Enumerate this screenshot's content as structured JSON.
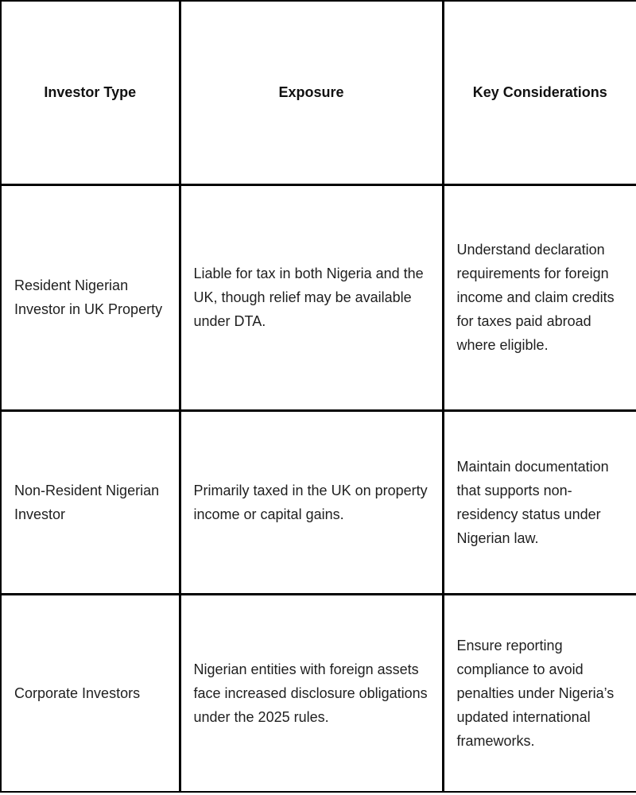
{
  "table": {
    "headers": [
      "Investor Type",
      "Exposure",
      "Key Considerations"
    ],
    "rows": [
      {
        "investor_type": "Resident Nigerian Investor in UK Property",
        "exposure": "Liable for tax in both Nigeria and the UK, though relief may be available under DTA.",
        "key_considerations": "Understand declaration requirements for foreign income and claim credits for taxes paid abroad where eligible."
      },
      {
        "investor_type": "Non-Resident Nigerian Investor",
        "exposure": "Primarily taxed in the UK on property income or capital gains.",
        "key_considerations": "Maintain documentation that supports non-residency status under Nigerian law."
      },
      {
        "investor_type": "Corporate Investors",
        "exposure": "Nigerian entities with foreign assets face increased disclosure obligations under the 2025 rules.",
        "key_considerations": "Ensure reporting compliance to avoid penalties under Nigeria’s updated international frameworks."
      }
    ],
    "colors": {
      "border": "#000000",
      "background": "#ffffff",
      "text": "#1f1f1f"
    }
  }
}
